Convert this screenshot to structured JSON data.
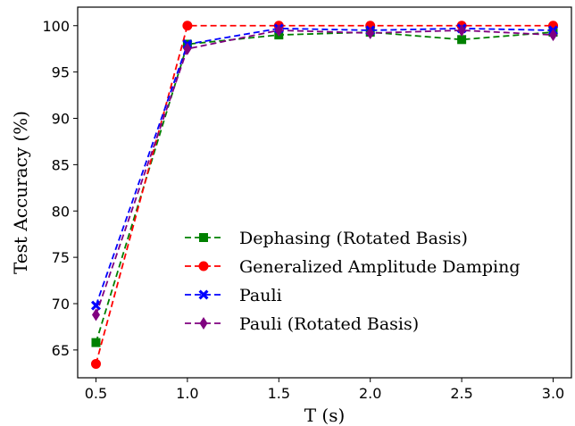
{
  "chart_data": {
    "type": "line",
    "xlabel": "T (s)",
    "ylabel": "Test Accuracy (%)",
    "xlim": [
      0.4,
      3.1
    ],
    "ylim": [
      62,
      102
    ],
    "xticks": [
      0.5,
      1.0,
      1.5,
      2.0,
      2.5,
      3.0
    ],
    "xtick_labels": [
      "0.5",
      "1.0",
      "1.5",
      "2.0",
      "2.5",
      "3.0"
    ],
    "yticks": [
      65,
      70,
      75,
      80,
      85,
      90,
      95,
      100
    ],
    "ytick_labels": [
      "65",
      "70",
      "75",
      "80",
      "85",
      "90",
      "95",
      "100"
    ],
    "grid": false,
    "legend_position": "lower-right",
    "x": [
      0.5,
      1.0,
      1.5,
      2.0,
      2.5,
      3.0
    ],
    "series": [
      {
        "name": "Dephasing (Rotated Basis)",
        "color": "#008000",
        "marker": "square",
        "values": [
          65.8,
          98.0,
          99.0,
          99.3,
          98.5,
          99.3
        ]
      },
      {
        "name": "Generalized Amplitude Damping",
        "color": "#ff0000",
        "marker": "circle",
        "values": [
          63.5,
          100.0,
          100.0,
          100.0,
          100.0,
          100.0
        ]
      },
      {
        "name": "Pauli",
        "color": "#0000ff",
        "marker": "x",
        "values": [
          69.8,
          98.0,
          99.7,
          99.5,
          99.7,
          99.5
        ]
      },
      {
        "name": "Pauli (Rotated Basis)",
        "color": "#800080",
        "marker": "diamond",
        "values": [
          68.8,
          97.5,
          99.5,
          99.2,
          99.5,
          99.0
        ]
      }
    ]
  }
}
